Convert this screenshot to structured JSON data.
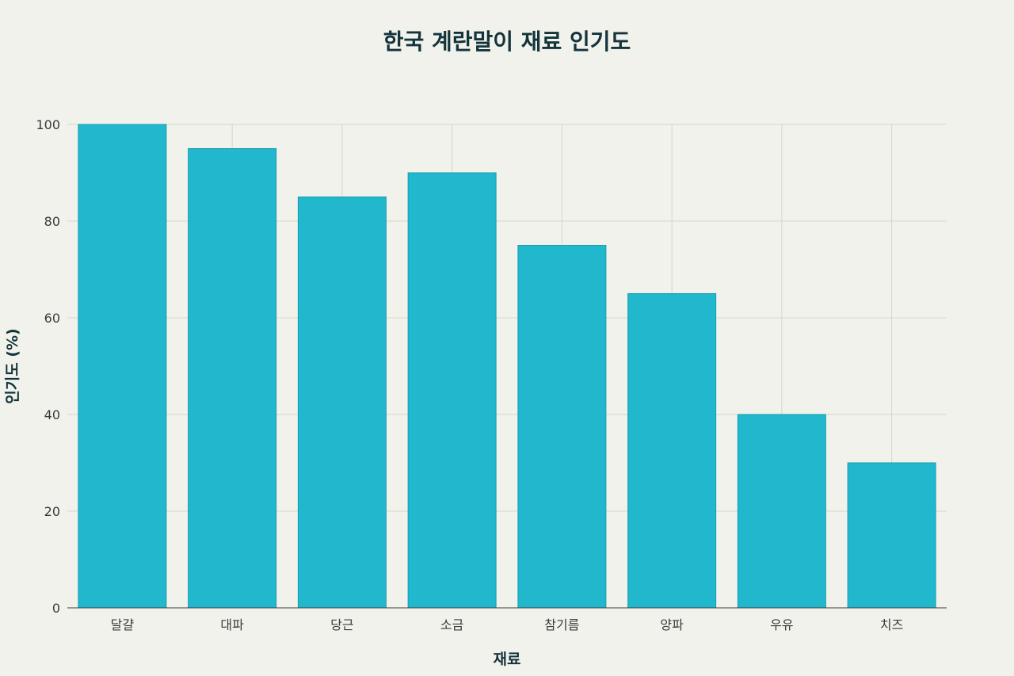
{
  "chart_data": {
    "type": "bar",
    "title": "한국 계란말이 재료 인기도",
    "xlabel": "재료",
    "ylabel": "인기도 (%)",
    "categories": [
      "달걀",
      "대파",
      "당근",
      "소금",
      "참기름",
      "양파",
      "우유",
      "치즈"
    ],
    "values": [
      100,
      95,
      85,
      90,
      75,
      65,
      40,
      30
    ],
    "ylim": [
      0,
      100
    ],
    "yticks": [
      "0",
      "20",
      "40",
      "60",
      "80",
      "100"
    ],
    "bar_color": "#21b8cd",
    "grid": true,
    "legend": "none"
  }
}
